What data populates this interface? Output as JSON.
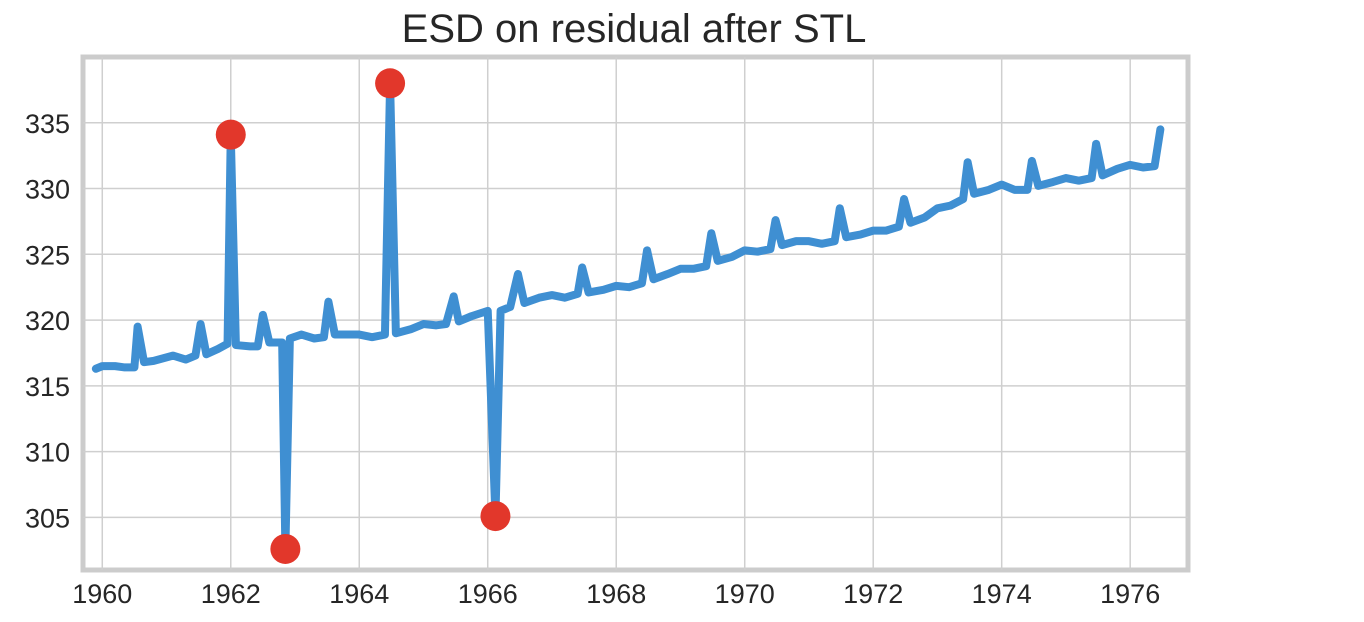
{
  "chart_data": {
    "type": "line",
    "title": "ESD on residual after STL",
    "xlabel": "",
    "ylabel": "",
    "xlim": [
      1959.7,
      1976.9
    ],
    "ylim": [
      301,
      340
    ],
    "x_ticks": [
      "1960",
      "1962",
      "1964",
      "1966",
      "1968",
      "1970",
      "1972",
      "1974",
      "1976"
    ],
    "y_ticks": [
      "305",
      "310",
      "315",
      "320",
      "325",
      "330",
      "335"
    ],
    "grid": true,
    "series": [
      {
        "color": "#3f8fd2",
        "points": [
          [
            1959.9,
            316.3
          ],
          [
            1960.0,
            316.5
          ],
          [
            1960.2,
            316.5
          ],
          [
            1960.35,
            316.4
          ],
          [
            1960.5,
            316.4
          ],
          [
            1960.55,
            319.5
          ],
          [
            1960.65,
            316.8
          ],
          [
            1960.8,
            316.9
          ],
          [
            1960.95,
            317.1
          ],
          [
            1961.1,
            317.3
          ],
          [
            1961.3,
            317.0
          ],
          [
            1961.45,
            317.3
          ],
          [
            1961.53,
            319.7
          ],
          [
            1961.62,
            317.4
          ],
          [
            1961.8,
            317.8
          ],
          [
            1961.95,
            318.2
          ],
          [
            1962.0,
            334.1
          ],
          [
            1962.08,
            318.1
          ],
          [
            1962.3,
            318.0
          ],
          [
            1962.42,
            318.0
          ],
          [
            1962.5,
            320.4
          ],
          [
            1962.6,
            318.3
          ],
          [
            1962.8,
            318.3
          ],
          [
            1962.85,
            302.6
          ],
          [
            1962.92,
            318.6
          ],
          [
            1963.1,
            318.9
          ],
          [
            1963.3,
            318.6
          ],
          [
            1963.45,
            318.7
          ],
          [
            1963.52,
            321.4
          ],
          [
            1963.62,
            318.9
          ],
          [
            1963.8,
            318.9
          ],
          [
            1964.0,
            318.9
          ],
          [
            1964.2,
            318.7
          ],
          [
            1964.4,
            318.9
          ],
          [
            1964.48,
            338.0
          ],
          [
            1964.57,
            319.0
          ],
          [
            1964.8,
            319.3
          ],
          [
            1965.0,
            319.7
          ],
          [
            1965.2,
            319.6
          ],
          [
            1965.35,
            319.7
          ],
          [
            1965.47,
            321.8
          ],
          [
            1965.55,
            319.9
          ],
          [
            1965.75,
            320.3
          ],
          [
            1966.0,
            320.7
          ],
          [
            1966.12,
            305.1
          ],
          [
            1966.2,
            320.7
          ],
          [
            1966.35,
            321.0
          ],
          [
            1966.47,
            323.5
          ],
          [
            1966.57,
            321.3
          ],
          [
            1966.8,
            321.7
          ],
          [
            1967.0,
            321.9
          ],
          [
            1967.2,
            321.7
          ],
          [
            1967.4,
            322.0
          ],
          [
            1967.47,
            324.0
          ],
          [
            1967.57,
            322.1
          ],
          [
            1967.8,
            322.3
          ],
          [
            1968.0,
            322.6
          ],
          [
            1968.2,
            322.5
          ],
          [
            1968.4,
            322.8
          ],
          [
            1968.48,
            325.3
          ],
          [
            1968.58,
            323.1
          ],
          [
            1968.8,
            323.5
          ],
          [
            1969.0,
            323.9
          ],
          [
            1969.2,
            323.9
          ],
          [
            1969.4,
            324.1
          ],
          [
            1969.48,
            326.6
          ],
          [
            1969.58,
            324.5
          ],
          [
            1969.8,
            324.8
          ],
          [
            1970.0,
            325.3
          ],
          [
            1970.2,
            325.2
          ],
          [
            1970.4,
            325.4
          ],
          [
            1970.48,
            327.6
          ],
          [
            1970.58,
            325.7
          ],
          [
            1970.8,
            326.0
          ],
          [
            1971.0,
            326.0
          ],
          [
            1971.2,
            325.8
          ],
          [
            1971.4,
            326.0
          ],
          [
            1971.48,
            328.5
          ],
          [
            1971.58,
            326.3
          ],
          [
            1971.8,
            326.5
          ],
          [
            1972.0,
            326.8
          ],
          [
            1972.2,
            326.8
          ],
          [
            1972.4,
            327.1
          ],
          [
            1972.48,
            329.2
          ],
          [
            1972.58,
            327.4
          ],
          [
            1972.8,
            327.8
          ],
          [
            1973.0,
            328.5
          ],
          [
            1973.2,
            328.7
          ],
          [
            1973.4,
            329.2
          ],
          [
            1973.47,
            332.0
          ],
          [
            1973.57,
            329.6
          ],
          [
            1973.8,
            329.9
          ],
          [
            1974.0,
            330.3
          ],
          [
            1974.2,
            329.9
          ],
          [
            1974.4,
            329.9
          ],
          [
            1974.47,
            332.1
          ],
          [
            1974.57,
            330.2
          ],
          [
            1974.8,
            330.5
          ],
          [
            1975.0,
            330.8
          ],
          [
            1975.2,
            330.6
          ],
          [
            1975.4,
            330.8
          ],
          [
            1975.47,
            333.4
          ],
          [
            1975.57,
            331.0
          ],
          [
            1975.8,
            331.5
          ],
          [
            1976.0,
            331.8
          ],
          [
            1976.2,
            331.6
          ],
          [
            1976.38,
            331.7
          ],
          [
            1976.47,
            334.5
          ]
        ]
      }
    ],
    "anomalies": {
      "color": "#e2372b",
      "points": [
        [
          1962.0,
          334.1
        ],
        [
          1962.85,
          302.6
        ],
        [
          1964.48,
          338.0
        ],
        [
          1966.12,
          305.1
        ]
      ]
    }
  }
}
